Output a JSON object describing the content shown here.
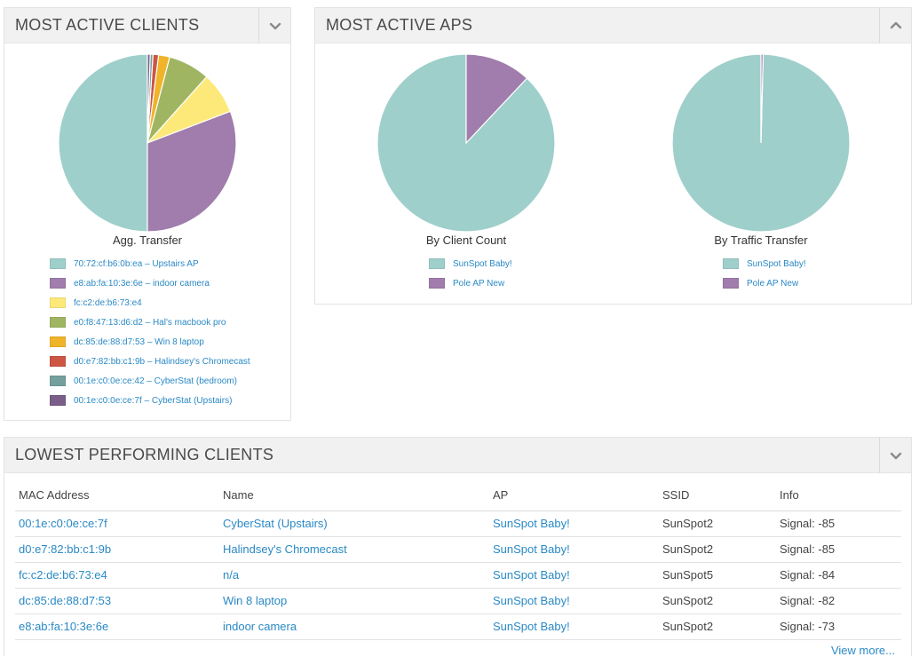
{
  "panels": {
    "clients": {
      "title": "MOST ACTIVE CLIENTS",
      "chart_label": "Agg. Transfer",
      "slices": [
        {
          "label": "70:72:cf:b6:0b:ea – Upstairs AP",
          "value": 49.5,
          "color": "#9ecfcb"
        },
        {
          "label": "e8:ab:fa:10:3e:6e – indoor camera",
          "value": 30.5,
          "color": "#a07dac"
        },
        {
          "label": "fc:c2:de:b6:73:e4",
          "value": 7.5,
          "color": "#fde97a"
        },
        {
          "label": "e0:f8:47:13:d6:d2 – Hal's macbook pro",
          "value": 7.5,
          "color": "#a0b562"
        },
        {
          "label": "dc:85:de:88:d7:53 – Win 8 laptop",
          "value": 2.0,
          "color": "#f0b42a"
        },
        {
          "label": "d0:e7:82:bb:c1:9b – Halindsey's Chromecast",
          "value": 1.0,
          "color": "#cc5544"
        },
        {
          "label": "00:1e:c0:0e:ce:42 – CyberStat (bedroom)",
          "value": 0.5,
          "color": "#739f9c"
        },
        {
          "label": "00:1e:c0:0e:ce:7f – CyberStat (Upstairs)",
          "value": 0.5,
          "color": "#7a5d89"
        }
      ]
    },
    "aps": {
      "title": "MOST ACTIVE APS",
      "client_count": {
        "label": "By Client Count",
        "slices": [
          {
            "label": "SunSpot Baby!",
            "value": 88,
            "color": "#9ecfcb"
          },
          {
            "label": "Pole AP New",
            "value": 12,
            "color": "#a07dac"
          }
        ]
      },
      "traffic_transfer": {
        "label": "By Traffic Transfer",
        "slices": [
          {
            "label": "SunSpot Baby!",
            "value": 99.6,
            "color": "#9ecfcb"
          },
          {
            "label": "Pole AP New",
            "value": 0.4,
            "color": "#a07dac"
          }
        ]
      }
    },
    "lowest": {
      "title": "LOWEST PERFORMING CLIENTS",
      "columns": [
        "MAC Address",
        "Name",
        "AP",
        "SSID",
        "Info"
      ],
      "rows": [
        {
          "mac": "00:1e:c0:0e:ce:7f",
          "name": "CyberStat (Upstairs)",
          "ap": "SunSpot Baby!",
          "ssid": "SunSpot2",
          "info": "Signal: -85"
        },
        {
          "mac": "d0:e7:82:bb:c1:9b",
          "name": "Halindsey's Chromecast",
          "ap": "SunSpot Baby!",
          "ssid": "SunSpot2",
          "info": "Signal: -85"
        },
        {
          "mac": "fc:c2:de:b6:73:e4",
          "name": "n/a",
          "ap": "SunSpot Baby!",
          "ssid": "SunSpot5",
          "info": "Signal: -84"
        },
        {
          "mac": "dc:85:de:88:d7:53",
          "name": "Win 8 laptop",
          "ap": "SunSpot Baby!",
          "ssid": "SunSpot2",
          "info": "Signal: -82"
        },
        {
          "mac": "e8:ab:fa:10:3e:6e",
          "name": "indoor camera",
          "ap": "SunSpot Baby!",
          "ssid": "SunSpot2",
          "info": "Signal: -73"
        }
      ],
      "view_more": "View more..."
    }
  },
  "icons": {
    "clients_toggle": "chevron-down-icon",
    "aps_toggle": "chevron-up-icon",
    "lowest_toggle": "chevron-down-icon"
  }
}
